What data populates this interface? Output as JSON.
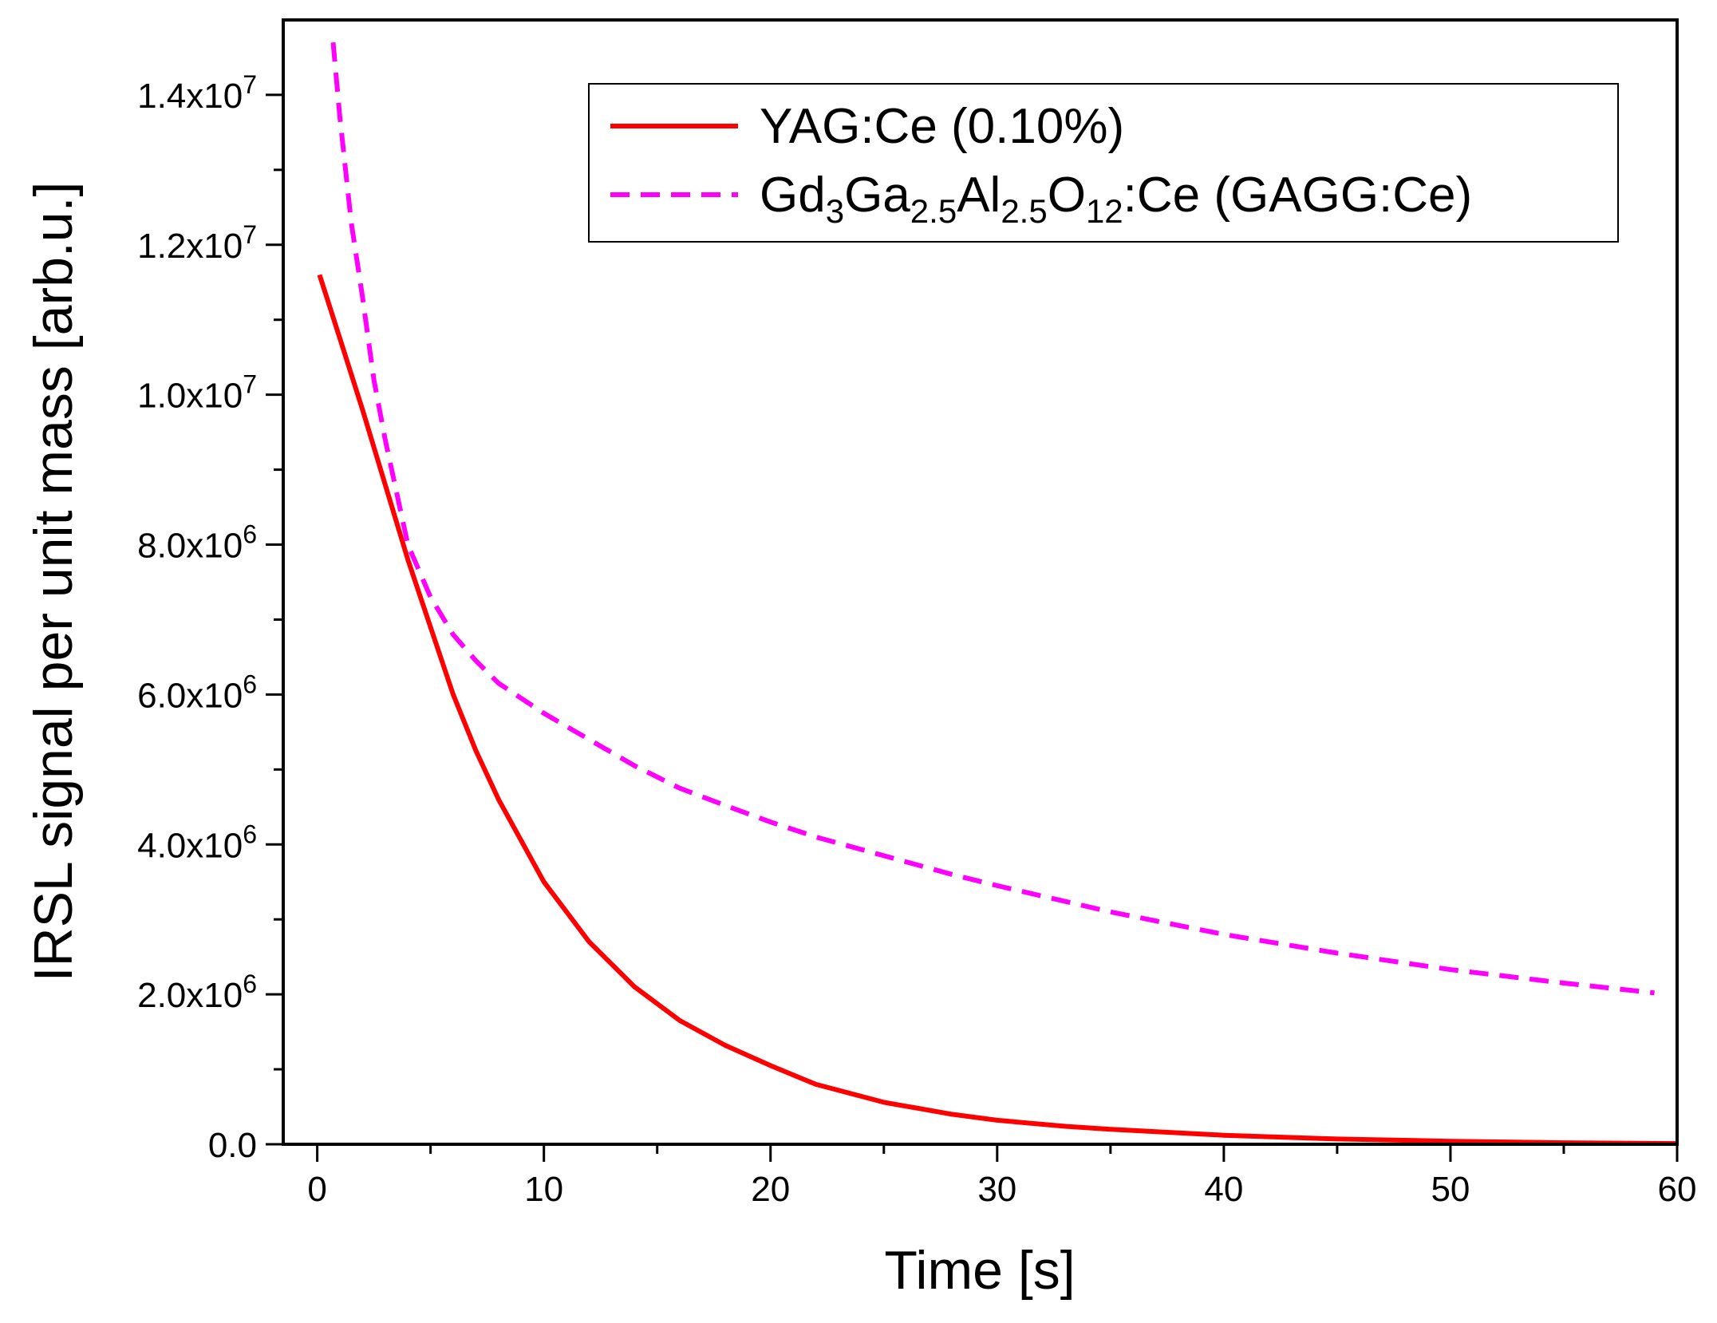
{
  "chart_data": {
    "type": "line",
    "title": "",
    "xlabel": "Time [s]",
    "ylabel": "IRSL signal per unit mass [arb.u.]",
    "xlim": [
      -1.5,
      60
    ],
    "ylim": [
      0,
      15000000
    ],
    "x_ticks": [
      0,
      10,
      20,
      30,
      40,
      50,
      60
    ],
    "y_ticks": [
      {
        "value": 0,
        "mantissa": "0.0",
        "exponent": ""
      },
      {
        "value": 2000000,
        "mantissa": "2.0x10",
        "exponent": "6"
      },
      {
        "value": 4000000,
        "mantissa": "4.0x10",
        "exponent": "6"
      },
      {
        "value": 6000000,
        "mantissa": "6.0x10",
        "exponent": "6"
      },
      {
        "value": 8000000,
        "mantissa": "8.0x10",
        "exponent": "6"
      },
      {
        "value": 10000000,
        "mantissa": "1.0x10",
        "exponent": "7"
      },
      {
        "value": 12000000,
        "mantissa": "1.2x10",
        "exponent": "7"
      },
      {
        "value": 14000000,
        "mantissa": "1.4x10",
        "exponent": "7"
      }
    ],
    "grid": false,
    "legend_position": "top-right",
    "series": [
      {
        "name": "YAG:Ce (0.10%)",
        "style": "solid",
        "color": "#ff0000",
        "x": [
          0.1,
          1,
          2,
          3,
          4,
          5,
          6,
          7,
          8,
          9,
          10,
          12,
          14,
          16,
          18,
          20,
          22,
          25,
          28,
          30,
          33,
          35,
          40,
          45,
          50,
          55,
          60
        ],
        "y": [
          11600000,
          10750000,
          9800000,
          8800000,
          7800000,
          6900000,
          6000000,
          5250000,
          4600000,
          4050000,
          3500000,
          2700000,
          2100000,
          1650000,
          1320000,
          1050000,
          800000,
          560000,
          400000,
          320000,
          240000,
          200000,
          120000,
          70000,
          40000,
          20000,
          10000
        ]
      },
      {
        "name": "Gd₃Ga₂.₅Al₂.₅O₁₂:Ce (GAGG:Ce)",
        "label_parts": [
          {
            "text": "Gd",
            "sub": false
          },
          {
            "text": "3",
            "sub": true
          },
          {
            "text": "Ga",
            "sub": false
          },
          {
            "text": "2.5",
            "sub": true
          },
          {
            "text": "Al",
            "sub": false
          },
          {
            "text": "2.5",
            "sub": true
          },
          {
            "text": "O",
            "sub": false
          },
          {
            "text": "12",
            "sub": true
          },
          {
            "text": ":Ce (GAGG:Ce)",
            "sub": false
          }
        ],
        "style": "dashed",
        "color": "#ff00ff",
        "x": [
          0.7,
          1,
          1.5,
          2,
          2.5,
          3,
          3.5,
          4,
          5,
          6,
          7,
          8,
          9,
          10,
          12,
          14,
          16,
          18,
          20,
          22,
          25,
          28,
          30,
          35,
          40,
          45,
          50,
          55,
          59
        ],
        "y": [
          14700000,
          13700000,
          12300000,
          11300000,
          10200000,
          9400000,
          8700000,
          8000000,
          7300000,
          6800000,
          6450000,
          6150000,
          5950000,
          5750000,
          5400000,
          5050000,
          4750000,
          4520000,
          4300000,
          4100000,
          3850000,
          3600000,
          3450000,
          3100000,
          2800000,
          2550000,
          2330000,
          2150000,
          2020000
        ]
      }
    ]
  }
}
